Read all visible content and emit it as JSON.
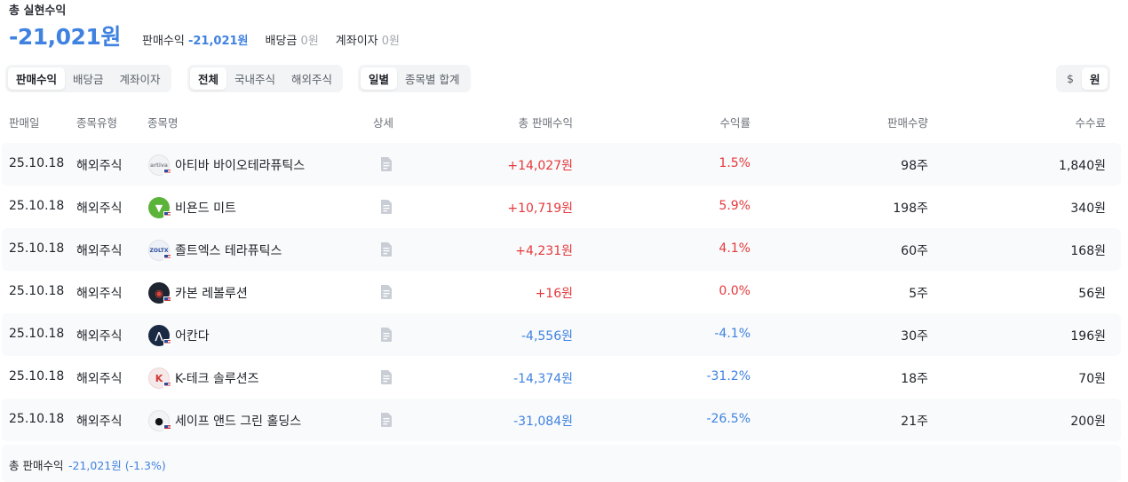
{
  "summary": {
    "title": "총 실현수익",
    "total": "-21,021원",
    "breakdown": [
      {
        "label": "판매수익",
        "value": "-21,021원",
        "tone": "blue"
      },
      {
        "label": "배당금",
        "value": "0원",
        "tone": "gray"
      },
      {
        "label": "계좌이자",
        "value": "0원",
        "tone": "gray"
      }
    ]
  },
  "filters": {
    "income_type": [
      "판매수익",
      "배당금",
      "계좌이자"
    ],
    "income_type_selected": "판매수익",
    "market": [
      "전체",
      "국내주식",
      "해외주식"
    ],
    "market_selected": "전체",
    "grouping": [
      "일별",
      "종목별 합계"
    ],
    "grouping_selected": "일별",
    "currency": [
      "$",
      "원"
    ],
    "currency_selected": "원"
  },
  "table": {
    "headers": {
      "date": "판매일",
      "type": "종목유형",
      "name": "종목명",
      "detail": "상세",
      "profit": "총 판매수익",
      "rate": "수익률",
      "qty": "판매수량",
      "fee": "수수료"
    },
    "rows": [
      {
        "date": "25.10.18",
        "type": "해외주식",
        "name": "아티바 바이오테라퓨틱스",
        "logo_icon": "artiva-logo",
        "logo_text": "artiva",
        "profit": "+14,027원",
        "rate": "1.5%",
        "qty": "98주",
        "fee": "1,840원",
        "direction": "up"
      },
      {
        "date": "25.10.18",
        "type": "해외주식",
        "name": "비욘드 미트",
        "logo_icon": "beyond-meat-logo",
        "logo_text": "",
        "profit": "+10,719원",
        "rate": "5.9%",
        "qty": "198주",
        "fee": "340원",
        "direction": "up"
      },
      {
        "date": "25.10.18",
        "type": "해외주식",
        "name": "졸트엑스 테라퓨틱스",
        "logo_icon": "zoltx-logo",
        "logo_text": "ZOLTX",
        "profit": "+4,231원",
        "rate": "4.1%",
        "qty": "60주",
        "fee": "168원",
        "direction": "up"
      },
      {
        "date": "25.10.18",
        "type": "해외주식",
        "name": "카본 레볼루션",
        "logo_icon": "carbon-revolution-logo",
        "logo_text": "",
        "profit": "+16원",
        "rate": "0.0%",
        "qty": "5주",
        "fee": "56원",
        "direction": "up"
      },
      {
        "date": "25.10.18",
        "type": "해외주식",
        "name": "어칸다",
        "logo_icon": "arcadia-logo",
        "logo_text": "",
        "profit": "-4,556원",
        "rate": "-4.1%",
        "qty": "30주",
        "fee": "196원",
        "direction": "down"
      },
      {
        "date": "25.10.18",
        "type": "해외주식",
        "name": "K-테크 솔루션즈",
        "logo_icon": "k-tech-logo",
        "logo_text": "",
        "profit": "-14,374원",
        "rate": "-31.2%",
        "qty": "18주",
        "fee": "70원",
        "direction": "down"
      },
      {
        "date": "25.10.18",
        "type": "해외주식",
        "name": "세이프 앤드 그린 홀딩스",
        "logo_icon": "safe-green-logo",
        "logo_text": "",
        "profit": "-31,084원",
        "rate": "-26.5%",
        "qty": "21주",
        "fee": "200원",
        "direction": "down"
      }
    ]
  },
  "footer": {
    "label": "총 판매수익",
    "value": "-21,021원 (-1.3%)"
  },
  "colors": {
    "positive": "#e4393c",
    "negative": "#3f82e0",
    "row_background": "#f9fafb",
    "segment_background": "#f2f4f6"
  }
}
